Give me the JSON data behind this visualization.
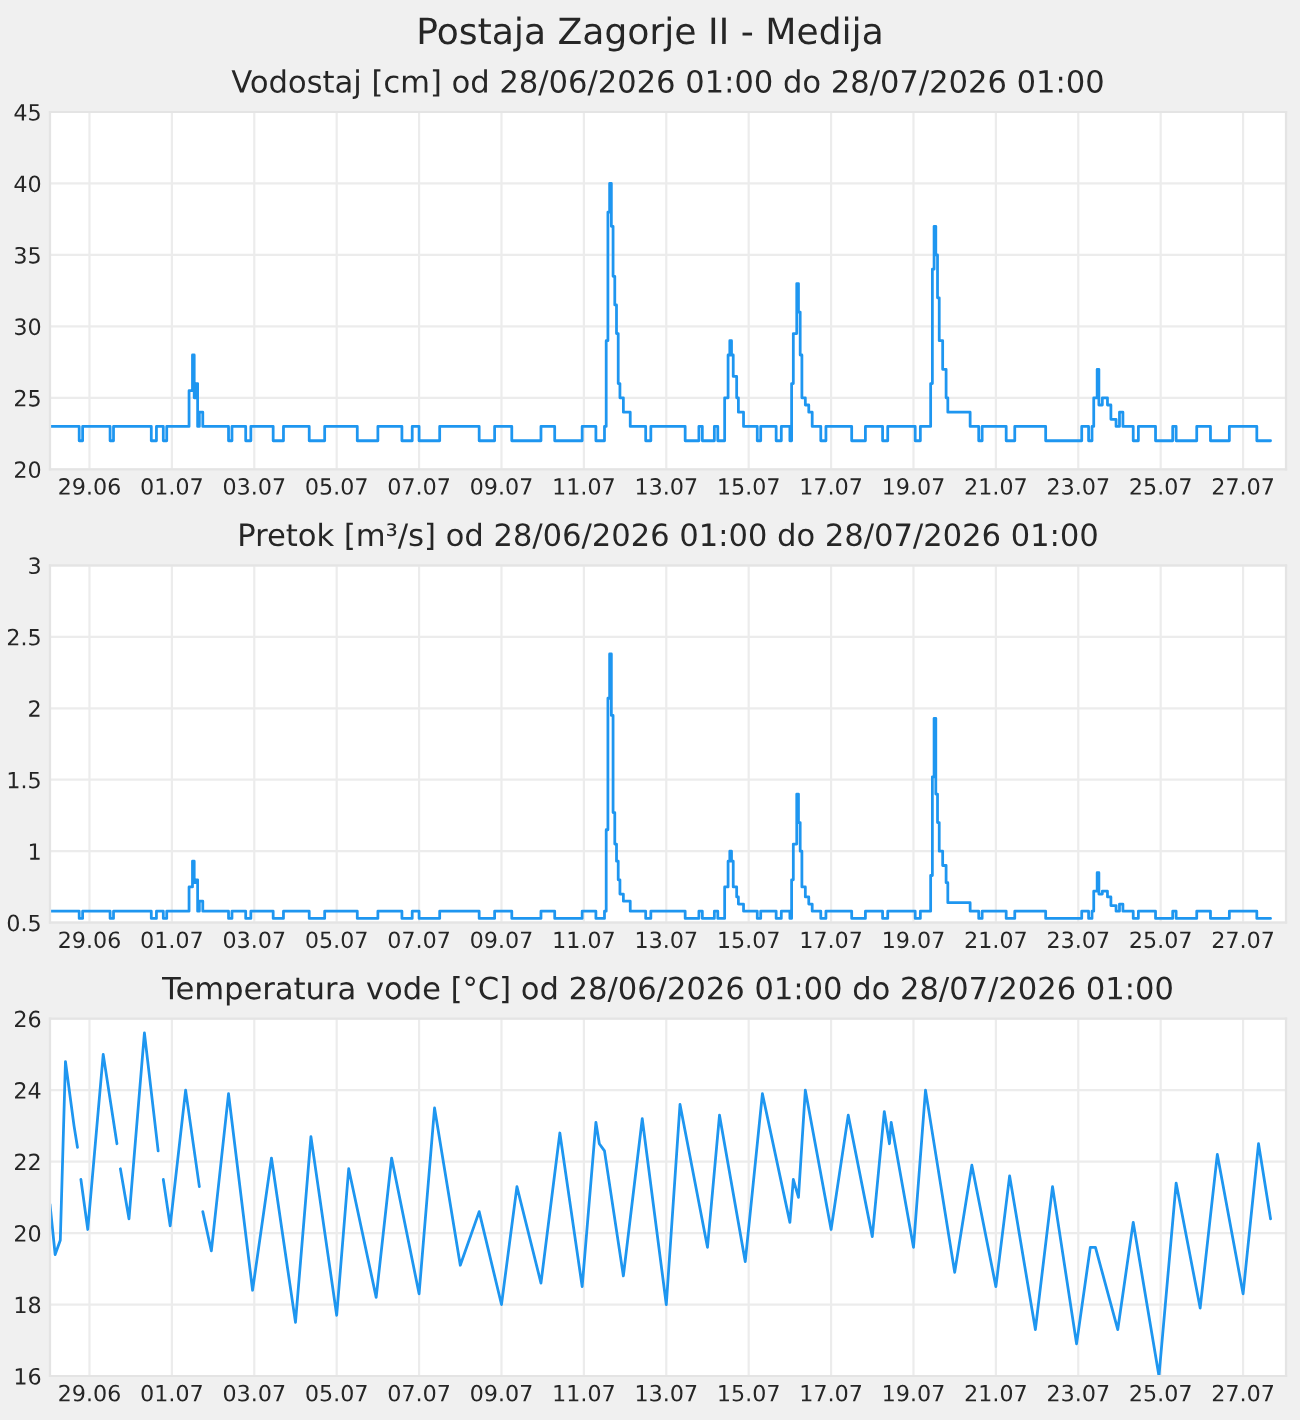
{
  "chart_data": [
    {
      "type": "step",
      "title": "Postaja Zagorje II - Medija",
      "subtitle": "Vodostaj [cm] od 28/06/2026 01:00 do 28/07/2026 01:00",
      "grid": true,
      "xlim": [
        "2026-06-28T01:00",
        "2026-07-28T01:00"
      ],
      "xticks": [
        {
          "value": "2026-06-29",
          "label": "29.06"
        },
        {
          "value": "2026-07-01",
          "label": "01.07"
        },
        {
          "value": "2026-07-03",
          "label": "03.07"
        },
        {
          "value": "2026-07-05",
          "label": "05.07"
        },
        {
          "value": "2026-07-07",
          "label": "07.07"
        },
        {
          "value": "2026-07-09",
          "label": "09.07"
        },
        {
          "value": "2026-07-11",
          "label": "11.07"
        },
        {
          "value": "2026-07-13",
          "label": "13.07"
        },
        {
          "value": "2026-07-15",
          "label": "15.07"
        },
        {
          "value": "2026-07-17",
          "label": "17.07"
        },
        {
          "value": "2026-07-19",
          "label": "19.07"
        },
        {
          "value": "2026-07-21",
          "label": "21.07"
        },
        {
          "value": "2026-07-23",
          "label": "23.07"
        },
        {
          "value": "2026-07-25",
          "label": "25.07"
        },
        {
          "value": "2026-07-27",
          "label": "27.07"
        }
      ],
      "ylim": [
        20,
        45
      ],
      "yticks": [
        20,
        25,
        30,
        35,
        40,
        45
      ],
      "series": [
        {
          "color": "#1e96f0",
          "x": [
            "2026-06-28T01:00",
            "2026-06-28T18:00",
            "2026-06-28T20:00",
            "2026-06-29T12:00",
            "2026-06-29T14:00",
            "2026-06-30T12:00",
            "2026-06-30T15:00",
            "2026-06-30T19:00",
            "2026-06-30T21:00",
            "2026-07-01T10:00",
            "2026-07-01T12:00",
            "2026-07-01T13:00",
            "2026-07-01T14:00",
            "2026-07-01T15:00",
            "2026-07-01T16:00",
            "2026-07-01T18:00",
            "2026-07-02T09:00",
            "2026-07-02T11:00",
            "2026-07-02T19:00",
            "2026-07-02T22:00",
            "2026-07-03T11:00",
            "2026-07-03T17:00",
            "2026-07-04T08:00",
            "2026-07-04T17:00",
            "2026-07-05T12:00",
            "2026-07-06T00:00",
            "2026-07-06T14:00",
            "2026-07-06T20:00",
            "2026-07-07T00:00",
            "2026-07-07T12:00",
            "2026-07-08T11:00",
            "2026-07-08T20:00",
            "2026-07-09T06:00",
            "2026-07-09T23:00",
            "2026-07-10T07:00",
            "2026-07-10T23:00",
            "2026-07-11T07:00",
            "2026-07-11T12:00",
            "2026-07-11T13:00",
            "2026-07-11T14:00",
            "2026-07-11T15:00",
            "2026-07-11T16:00",
            "2026-07-11T17:00",
            "2026-07-11T18:00",
            "2026-07-11T19:00",
            "2026-07-11T20:00",
            "2026-07-11T21:00",
            "2026-07-11T23:00",
            "2026-07-12T03:00",
            "2026-07-12T12:00",
            "2026-07-12T15:00",
            "2026-07-13T11:00",
            "2026-07-13T19:00",
            "2026-07-13T21:00",
            "2026-07-14T04:00",
            "2026-07-14T06:00",
            "2026-07-14T10:00",
            "2026-07-14T12:00",
            "2026-07-14T13:00",
            "2026-07-14T14:00",
            "2026-07-14T15:00",
            "2026-07-14T17:00",
            "2026-07-14T18:00",
            "2026-07-14T21:00",
            "2026-07-15T05:00",
            "2026-07-15T07:00",
            "2026-07-15T16:00",
            "2026-07-15T19:00",
            "2026-07-16T00:00",
            "2026-07-16T01:00",
            "2026-07-16T02:00",
            "2026-07-16T04:00",
            "2026-07-16T05:00",
            "2026-07-16T06:00",
            "2026-07-16T07:00",
            "2026-07-16T09:00",
            "2026-07-16T11:00",
            "2026-07-16T13:00",
            "2026-07-16T18:00",
            "2026-07-16T21:00",
            "2026-07-17T12:00",
            "2026-07-17T20:00",
            "2026-07-18T06:00",
            "2026-07-18T09:00",
            "2026-07-19T01:00",
            "2026-07-19T04:00",
            "2026-07-19T10:00",
            "2026-07-19T11:00",
            "2026-07-19T12:00",
            "2026-07-19T13:00",
            "2026-07-19T14:00",
            "2026-07-19T15:00",
            "2026-07-19T17:00",
            "2026-07-19T19:00",
            "2026-07-19T20:00",
            "2026-07-20T09:00",
            "2026-07-20T14:00",
            "2026-07-20T16:00",
            "2026-07-21T06:00",
            "2026-07-21T11:00",
            "2026-07-22T05:00",
            "2026-07-23T02:00",
            "2026-07-23T06:00",
            "2026-07-23T08:00",
            "2026-07-23T09:00",
            "2026-07-23T11:00",
            "2026-07-23T12:00",
            "2026-07-23T14:00",
            "2026-07-23T17:00",
            "2026-07-23T19:00",
            "2026-07-23T22:00",
            "2026-07-24T00:00",
            "2026-07-24T02:00",
            "2026-07-24T08:00",
            "2026-07-24T11:00",
            "2026-07-24T21:00",
            "2026-07-25T07:00",
            "2026-07-25T09:00",
            "2026-07-25T21:00",
            "2026-07-26T05:00",
            "2026-07-26T16:00",
            "2026-07-27T08:00",
            "2026-07-27T16:00"
          ],
          "values": [
            23,
            22,
            23,
            22,
            23,
            22,
            23,
            22,
            23,
            25.5,
            28,
            25,
            26,
            23,
            24,
            23,
            22,
            23,
            22,
            23,
            22,
            23,
            22,
            23,
            22,
            23,
            22,
            23,
            22,
            23,
            22,
            23,
            22,
            23,
            22,
            23,
            22,
            23,
            29,
            38,
            40,
            37,
            33.5,
            31.5,
            29.5,
            26,
            25,
            24,
            23,
            22,
            23,
            22,
            23,
            22,
            23,
            22,
            25,
            28,
            29,
            28,
            26.5,
            25,
            24,
            23,
            22,
            23,
            22,
            23,
            22,
            26,
            29.5,
            33,
            31,
            28,
            25,
            24.5,
            24,
            23,
            22,
            23,
            22,
            23,
            22,
            23,
            22,
            23,
            26,
            34,
            37,
            35,
            32,
            29,
            27,
            25,
            24,
            23,
            22,
            23,
            22,
            23,
            22,
            23,
            22,
            23,
            25,
            27,
            24.5,
            25,
            24.5,
            23.5,
            23,
            24,
            23,
            22,
            23,
            22,
            23,
            22,
            23,
            22,
            23,
            22,
            22
          ]
        }
      ]
    },
    {
      "type": "step",
      "title": "Pretok [m³/s] od 28/06/2026 01:00 do 28/07/2026 01:00",
      "grid": true,
      "xlim": [
        "2026-06-28T01:00",
        "2026-07-28T01:00"
      ],
      "xticks": [
        {
          "value": "2026-06-29",
          "label": "29.06"
        },
        {
          "value": "2026-07-01",
          "label": "01.07"
        },
        {
          "value": "2026-07-03",
          "label": "03.07"
        },
        {
          "value": "2026-07-05",
          "label": "05.07"
        },
        {
          "value": "2026-07-07",
          "label": "07.07"
        },
        {
          "value": "2026-07-09",
          "label": "09.07"
        },
        {
          "value": "2026-07-11",
          "label": "11.07"
        },
        {
          "value": "2026-07-13",
          "label": "13.07"
        },
        {
          "value": "2026-07-15",
          "label": "15.07"
        },
        {
          "value": "2026-07-17",
          "label": "17.07"
        },
        {
          "value": "2026-07-19",
          "label": "19.07"
        },
        {
          "value": "2026-07-21",
          "label": "21.07"
        },
        {
          "value": "2026-07-23",
          "label": "23.07"
        },
        {
          "value": "2026-07-25",
          "label": "25.07"
        },
        {
          "value": "2026-07-27",
          "label": "27.07"
        }
      ],
      "ylim": [
        0.5,
        3
      ],
      "yticks": [
        0.5,
        1,
        1.5,
        2,
        2.5,
        3
      ],
      "series": [
        {
          "color": "#1e96f0",
          "x": [
            "2026-06-28T01:00",
            "2026-06-28T18:00",
            "2026-06-28T20:00",
            "2026-06-29T12:00",
            "2026-06-29T14:00",
            "2026-06-30T12:00",
            "2026-06-30T15:00",
            "2026-06-30T19:00",
            "2026-06-30T21:00",
            "2026-07-01T10:00",
            "2026-07-01T12:00",
            "2026-07-01T13:00",
            "2026-07-01T14:00",
            "2026-07-01T15:00",
            "2026-07-01T16:00",
            "2026-07-01T18:00",
            "2026-07-02T09:00",
            "2026-07-02T11:00",
            "2026-07-02T19:00",
            "2026-07-02T22:00",
            "2026-07-03T11:00",
            "2026-07-03T17:00",
            "2026-07-04T08:00",
            "2026-07-04T17:00",
            "2026-07-05T12:00",
            "2026-07-06T00:00",
            "2026-07-06T14:00",
            "2026-07-06T20:00",
            "2026-07-07T00:00",
            "2026-07-07T12:00",
            "2026-07-08T11:00",
            "2026-07-08T20:00",
            "2026-07-09T06:00",
            "2026-07-09T23:00",
            "2026-07-10T07:00",
            "2026-07-10T23:00",
            "2026-07-11T07:00",
            "2026-07-11T12:00",
            "2026-07-11T13:00",
            "2026-07-11T14:00",
            "2026-07-11T15:00",
            "2026-07-11T16:00",
            "2026-07-11T17:00",
            "2026-07-11T18:00",
            "2026-07-11T19:00",
            "2026-07-11T20:00",
            "2026-07-11T21:00",
            "2026-07-11T23:00",
            "2026-07-12T03:00",
            "2026-07-12T12:00",
            "2026-07-12T15:00",
            "2026-07-13T11:00",
            "2026-07-13T19:00",
            "2026-07-13T21:00",
            "2026-07-14T04:00",
            "2026-07-14T06:00",
            "2026-07-14T10:00",
            "2026-07-14T12:00",
            "2026-07-14T13:00",
            "2026-07-14T14:00",
            "2026-07-14T15:00",
            "2026-07-14T17:00",
            "2026-07-14T18:00",
            "2026-07-14T21:00",
            "2026-07-15T05:00",
            "2026-07-15T07:00",
            "2026-07-15T16:00",
            "2026-07-15T19:00",
            "2026-07-16T00:00",
            "2026-07-16T01:00",
            "2026-07-16T02:00",
            "2026-07-16T04:00",
            "2026-07-16T05:00",
            "2026-07-16T06:00",
            "2026-07-16T07:00",
            "2026-07-16T09:00",
            "2026-07-16T11:00",
            "2026-07-16T13:00",
            "2026-07-16T18:00",
            "2026-07-16T21:00",
            "2026-07-17T12:00",
            "2026-07-17T20:00",
            "2026-07-18T06:00",
            "2026-07-18T09:00",
            "2026-07-19T01:00",
            "2026-07-19T04:00",
            "2026-07-19T10:00",
            "2026-07-19T11:00",
            "2026-07-19T12:00",
            "2026-07-19T13:00",
            "2026-07-19T14:00",
            "2026-07-19T15:00",
            "2026-07-19T17:00",
            "2026-07-19T19:00",
            "2026-07-19T20:00",
            "2026-07-20T09:00",
            "2026-07-20T14:00",
            "2026-07-20T16:00",
            "2026-07-21T06:00",
            "2026-07-21T11:00",
            "2026-07-22T05:00",
            "2026-07-23T02:00",
            "2026-07-23T06:00",
            "2026-07-23T08:00",
            "2026-07-23T09:00",
            "2026-07-23T11:00",
            "2026-07-23T12:00",
            "2026-07-23T14:00",
            "2026-07-23T17:00",
            "2026-07-23T19:00",
            "2026-07-23T22:00",
            "2026-07-24T00:00",
            "2026-07-24T02:00",
            "2026-07-24T08:00",
            "2026-07-24T11:00",
            "2026-07-24T21:00",
            "2026-07-25T07:00",
            "2026-07-25T09:00",
            "2026-07-25T21:00",
            "2026-07-26T05:00",
            "2026-07-26T16:00",
            "2026-07-27T08:00",
            "2026-07-27T16:00"
          ],
          "values": [
            0.58,
            0.53,
            0.58,
            0.53,
            0.58,
            0.53,
            0.58,
            0.53,
            0.58,
            0.75,
            0.93,
            0.78,
            0.8,
            0.58,
            0.65,
            0.58,
            0.53,
            0.58,
            0.53,
            0.58,
            0.53,
            0.58,
            0.53,
            0.58,
            0.53,
            0.58,
            0.53,
            0.58,
            0.53,
            0.58,
            0.53,
            0.58,
            0.53,
            0.58,
            0.53,
            0.58,
            0.53,
            0.58,
            1.15,
            2.07,
            2.38,
            1.95,
            1.27,
            1.05,
            0.93,
            0.8,
            0.7,
            0.65,
            0.58,
            0.53,
            0.58,
            0.53,
            0.58,
            0.53,
            0.58,
            0.53,
            0.75,
            0.93,
            1.0,
            0.93,
            0.75,
            0.68,
            0.63,
            0.58,
            0.53,
            0.58,
            0.53,
            0.58,
            0.53,
            0.8,
            1.05,
            1.4,
            1.2,
            1.0,
            0.75,
            0.68,
            0.63,
            0.58,
            0.53,
            0.58,
            0.53,
            0.58,
            0.53,
            0.58,
            0.53,
            0.58,
            0.83,
            1.52,
            1.93,
            1.4,
            1.2,
            1.0,
            0.9,
            0.78,
            0.64,
            0.58,
            0.53,
            0.58,
            0.53,
            0.58,
            0.53,
            0.58,
            0.53,
            0.58,
            0.72,
            0.85,
            0.7,
            0.72,
            0.68,
            0.62,
            0.58,
            0.63,
            0.58,
            0.53,
            0.58,
            0.53,
            0.58,
            0.53,
            0.58,
            0.53,
            0.58,
            0.53,
            0.53
          ]
        }
      ]
    },
    {
      "type": "line",
      "title": "Temperatura vode [°C] od 28/06/2026 01:00 do 28/07/2026 01:00",
      "grid": true,
      "xlim": [
        "2026-06-28T01:00",
        "2026-07-28T01:00"
      ],
      "xticks": [
        {
          "value": "2026-06-29",
          "label": "29.06"
        },
        {
          "value": "2026-07-01",
          "label": "01.07"
        },
        {
          "value": "2026-07-03",
          "label": "03.07"
        },
        {
          "value": "2026-07-05",
          "label": "05.07"
        },
        {
          "value": "2026-07-07",
          "label": "07.07"
        },
        {
          "value": "2026-07-09",
          "label": "09.07"
        },
        {
          "value": "2026-07-11",
          "label": "11.07"
        },
        {
          "value": "2026-07-13",
          "label": "13.07"
        },
        {
          "value": "2026-07-15",
          "label": "15.07"
        },
        {
          "value": "2026-07-17",
          "label": "17.07"
        },
        {
          "value": "2026-07-19",
          "label": "19.07"
        },
        {
          "value": "2026-07-21",
          "label": "21.07"
        },
        {
          "value": "2026-07-23",
          "label": "23.07"
        },
        {
          "value": "2026-07-25",
          "label": "25.07"
        },
        {
          "value": "2026-07-27",
          "label": "27.07"
        }
      ],
      "ylim": [
        16,
        26
      ],
      "yticks": [
        16,
        18,
        20,
        22,
        24,
        26
      ],
      "series": [
        {
          "color": "#1e96f0",
          "x": [
            "2026-06-28T01:00",
            "2026-06-28T04:00",
            "2026-06-28T07:00",
            "2026-06-28T10:00",
            "2026-06-28T15:00",
            "2026-06-28T17:00",
            "2026-06-28T18:00",
            "2026-06-28T19:00",
            "2026-06-28T23:00",
            "2026-06-29T08:00",
            "2026-06-29T16:00",
            "2026-06-29T17:00",
            "2026-06-29T18:00",
            "2026-06-29T23:00",
            "2026-06-30T08:00",
            "2026-06-30T16:00",
            "2026-06-30T17:00",
            "2026-06-30T19:00",
            "2026-06-30T23:00",
            "2026-07-01T08:00",
            "2026-07-01T16:00",
            "2026-07-01T17:00",
            "2026-07-01T18:00",
            "2026-07-01T23:00",
            "2026-07-02T09:00",
            "2026-07-02T23:00",
            "2026-07-03T10:00",
            "2026-07-04T00:00",
            "2026-07-04T09:00",
            "2026-07-05T00:00",
            "2026-07-05T07:00",
            "2026-07-05T23:00",
            "2026-07-06T08:00",
            "2026-07-07T00:00",
            "2026-07-07T09:00",
            "2026-07-08T00:00",
            "2026-07-08T11:00",
            "2026-07-09T00:00",
            "2026-07-09T09:00",
            "2026-07-09T23:00",
            "2026-07-10T10:00",
            "2026-07-10T23:00",
            "2026-07-11T07:00",
            "2026-07-11T09:00",
            "2026-07-11T12:00",
            "2026-07-11T23:00",
            "2026-07-12T10:00",
            "2026-07-13T00:00",
            "2026-07-13T08:00",
            "2026-07-14T00:00",
            "2026-07-14T07:00",
            "2026-07-14T22:00",
            "2026-07-15T08:00",
            "2026-07-16T00:00",
            "2026-07-16T02:00",
            "2026-07-16T05:00",
            "2026-07-16T09:00",
            "2026-07-17T00:00",
            "2026-07-17T10:00",
            "2026-07-18T00:00",
            "2026-07-18T07:00",
            "2026-07-18T10:00",
            "2026-07-18T11:00",
            "2026-07-19T00:00",
            "2026-07-19T07:00",
            "2026-07-20T00:00",
            "2026-07-20T10:00",
            "2026-07-21T00:00",
            "2026-07-21T08:00",
            "2026-07-21T23:00",
            "2026-07-22T09:00",
            "2026-07-22T23:00",
            "2026-07-23T07:00",
            "2026-07-23T10:00",
            "2026-07-23T23:00",
            "2026-07-24T08:00",
            "2026-07-24T23:00",
            "2026-07-25T09:00",
            "2026-07-25T23:00",
            "2026-07-26T09:00",
            "2026-07-27T00:00",
            "2026-07-27T09:00",
            "2026-07-27T16:00"
          ],
          "values": [
            20.8,
            19.4,
            19.8,
            24.8,
            23,
            22.4,
            null,
            21.5,
            20.1,
            25.0,
            22.5,
            null,
            21.8,
            20.4,
            25.6,
            22.3,
            null,
            21.5,
            20.2,
            24.0,
            21.3,
            null,
            20.6,
            19.5,
            23.9,
            18.4,
            22.1,
            17.5,
            22.7,
            17.7,
            21.8,
            18.2,
            22.1,
            18.3,
            23.5,
            19.1,
            20.6,
            18.0,
            21.3,
            18.6,
            22.8,
            18.5,
            23.1,
            22.5,
            22.3,
            18.8,
            23.2,
            18.0,
            23.6,
            19.6,
            23.3,
            19.2,
            23.9,
            20.3,
            21.5,
            21.0,
            24.0,
            20.1,
            23.3,
            19.9,
            23.4,
            22.5,
            23.1,
            19.6,
            24.0,
            18.9,
            21.9,
            18.5,
            21.6,
            17.3,
            21.3,
            16.9,
            19.6,
            19.6,
            17.3,
            20.3,
            16.0,
            21.4,
            17.9,
            22.2,
            18.3,
            22.5,
            20.4
          ]
        }
      ]
    }
  ]
}
